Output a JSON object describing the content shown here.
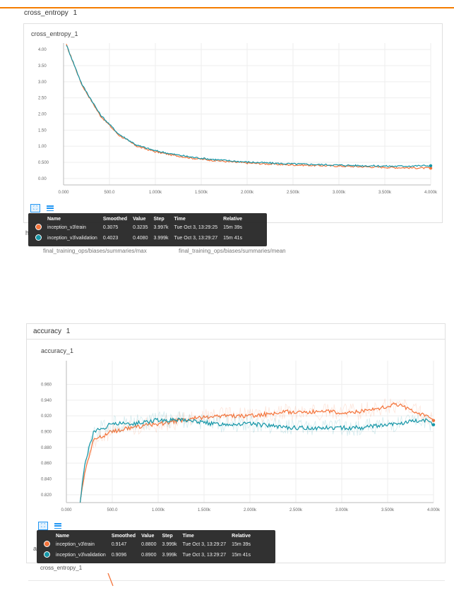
{
  "sections": [
    {
      "title": "cross_entropy",
      "count": "1"
    },
    {
      "title": "accuracy",
      "count": "1"
    }
  ],
  "background_texts": {
    "left_path": "final_training_ops/biases/summaries/max",
    "right_path": "final_training_ops/biases/summaries/mean",
    "chip1": "h",
    "chip2": "a",
    "lower_title": "cross_entropy_1"
  },
  "tooltip_headers": [
    "Name",
    "Smoothed",
    "Value",
    "Step",
    "Time",
    "Relative"
  ],
  "colors": {
    "train": "#f4743b",
    "validation": "#1596a7",
    "accent": "#f57c00",
    "button": "#2196f3"
  },
  "icons": [
    "fit-domain-icon",
    "data-table-menu-icon"
  ],
  "chart_data": [
    {
      "type": "line",
      "title": "cross_entropy_1",
      "xlabel": "",
      "ylabel": "",
      "xlim": [
        0,
        4000
      ],
      "ylim": [
        -0.2,
        4.2
      ],
      "grid": true,
      "x_ticks": [
        0,
        500,
        1000,
        1500,
        2000,
        2500,
        3000,
        3500,
        4000
      ],
      "x_tick_labels": [
        "0.000",
        "500.0",
        "1.000k",
        "1.500k",
        "2.000k",
        "2.500k",
        "3.000k",
        "3.500k",
        "4.000k"
      ],
      "y_ticks": [
        0.0,
        0.5,
        1.0,
        1.5,
        2.0,
        2.5,
        3.0,
        3.5,
        4.0
      ],
      "y_tick_labels": [
        "0.00",
        "0.500",
        "1.00",
        "1.50",
        "2.00",
        "2.50",
        "3.00",
        "3.50",
        "4.00"
      ],
      "series": [
        {
          "name": "inception_v3\\train",
          "color": "#f4743b",
          "x": [
            30,
            200,
            400,
            600,
            800,
            1000,
            1200,
            1400,
            1600,
            1800,
            2000,
            2400,
            2800,
            3200,
            3600,
            4000
          ],
          "y": [
            4.15,
            2.9,
            1.95,
            1.35,
            1.0,
            0.83,
            0.72,
            0.63,
            0.57,
            0.52,
            0.48,
            0.43,
            0.4,
            0.37,
            0.34,
            0.32
          ]
        },
        {
          "name": "inception_v3\\validation",
          "color": "#1596a7",
          "x": [
            30,
            200,
            400,
            600,
            800,
            1000,
            1200,
            1400,
            1600,
            1800,
            2000,
            2400,
            2800,
            3200,
            3600,
            4000
          ],
          "y": [
            4.15,
            2.92,
            1.98,
            1.38,
            1.03,
            0.86,
            0.75,
            0.66,
            0.6,
            0.55,
            0.51,
            0.46,
            0.43,
            0.4,
            0.38,
            0.4
          ]
        }
      ],
      "tooltip": {
        "rows": [
          {
            "name": "inception_v3\\train",
            "smoothed": "0.3075",
            "value": "0.3235",
            "step": "3.997k",
            "time": "Tue Oct 3, 13:29:25",
            "relative": "15m 39s",
            "color": "#f4743b"
          },
          {
            "name": "inception_v3\\validation",
            "smoothed": "0.4023",
            "value": "0.4080",
            "step": "3.999k",
            "time": "Tue Oct 3, 13:29:27",
            "relative": "15m 41s",
            "color": "#1596a7"
          }
        ]
      }
    },
    {
      "type": "line",
      "title": "accuracy_1",
      "xlabel": "",
      "ylabel": "",
      "xlim": [
        0,
        4000
      ],
      "ylim": [
        0.81,
        0.99
      ],
      "grid": true,
      "x_ticks": [
        0,
        500,
        1000,
        1500,
        2000,
        2500,
        3000,
        3500,
        4000
      ],
      "x_tick_labels": [
        "0.000",
        "500.0",
        "1.000k",
        "1.500k",
        "2.000k",
        "2.500k",
        "3.000k",
        "3.500k",
        "4.000k"
      ],
      "y_ticks": [
        0.82,
        0.84,
        0.86,
        0.88,
        0.9,
        0.92,
        0.94,
        0.96
      ],
      "y_tick_labels": [
        "0.820",
        "0.840",
        "0.860",
        "0.880",
        "0.900",
        "0.920",
        "0.940",
        "0.960"
      ],
      "series": [
        {
          "name": "inception_v3\\train",
          "color": "#f4743b",
          "x": [
            150,
            200,
            300,
            400,
            500,
            700,
            1000,
            1300,
            1600,
            2000,
            2400,
            2800,
            3200,
            3600,
            3900,
            4000
          ],
          "y": [
            0.81,
            0.85,
            0.89,
            0.895,
            0.9,
            0.905,
            0.91,
            0.915,
            0.92,
            0.92,
            0.925,
            0.925,
            0.925,
            0.935,
            0.92,
            0.915
          ]
        },
        {
          "name": "inception_v3\\validation",
          "color": "#1596a7",
          "x": [
            150,
            200,
            300,
            400,
            500,
            700,
            1000,
            1300,
            1600,
            2000,
            2400,
            2800,
            3200,
            3600,
            3900,
            4000
          ],
          "y": [
            0.81,
            0.86,
            0.9,
            0.905,
            0.91,
            0.91,
            0.915,
            0.915,
            0.91,
            0.91,
            0.905,
            0.905,
            0.905,
            0.91,
            0.915,
            0.908
          ]
        }
      ],
      "tooltip": {
        "rows": [
          {
            "name": "inception_v3\\train",
            "smoothed": "0.9147",
            "value": "0.8800",
            "step": "3.999k",
            "time": "Tue Oct 3, 13:29:27",
            "relative": "15m 39s",
            "color": "#f4743b"
          },
          {
            "name": "inception_v3\\validation",
            "smoothed": "0.9096",
            "value": "0.8900",
            "step": "3.999k",
            "time": "Tue Oct 3, 13:29:27",
            "relative": "15m 41s",
            "color": "#1596a7"
          }
        ]
      }
    }
  ]
}
